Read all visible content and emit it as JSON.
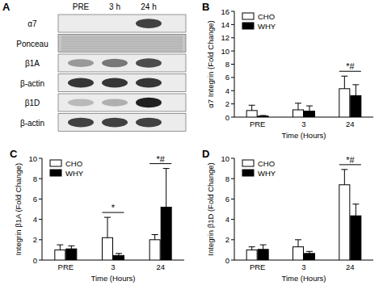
{
  "blot": {
    "title": "A",
    "columns": [
      "PRE",
      "3 h",
      "24 h"
    ],
    "rows": [
      "α7",
      "Ponceau",
      "β1A",
      "β-actin",
      "β1D",
      "β-actin"
    ]
  },
  "chart_data": [
    {
      "type": "bar",
      "title": "B",
      "x_label": "Time (Hours)",
      "y_label": "α7 Integrin (Fold Change)",
      "categories": [
        "PRE",
        "3",
        "24"
      ],
      "series": [
        {
          "name": "CHO",
          "color": "#ffffff",
          "values": [
            1.0,
            1.1,
            4.3
          ],
          "errors": [
            0.8,
            1.0,
            1.9
          ]
        },
        {
          "name": "WHY",
          "color": "#000000",
          "values": [
            0.15,
            0.9,
            3.25
          ],
          "errors": [
            0.1,
            0.8,
            1.65
          ]
        }
      ],
      "ylim": [
        0,
        16
      ],
      "yticks": [
        0,
        2,
        4,
        6,
        8,
        10,
        12,
        14,
        16
      ],
      "legend": "upper left",
      "annotations": [
        {
          "text": "*#",
          "category": "24"
        }
      ]
    },
    {
      "type": "bar",
      "title": "C",
      "x_label": "Time (Hours)",
      "y_label": "Integrin β1A (Fold Change)",
      "categories": [
        "PRE",
        "3",
        "24"
      ],
      "series": [
        {
          "name": "CHO",
          "color": "#ffffff",
          "values": [
            1.0,
            2.2,
            2.0
          ],
          "errors": [
            0.5,
            2.0,
            0.5
          ]
        },
        {
          "name": "WHY",
          "color": "#000000",
          "values": [
            1.1,
            0.45,
            5.2
          ],
          "errors": [
            0.3,
            0.2,
            3.8
          ]
        }
      ],
      "ylim": [
        0,
        10
      ],
      "yticks": [
        0,
        2,
        4,
        6,
        8,
        10
      ],
      "legend": "upper left",
      "annotations": [
        {
          "text": "*",
          "category": "3"
        },
        {
          "text": "*#",
          "category": "24"
        }
      ]
    },
    {
      "type": "bar",
      "title": "D",
      "x_label": "Time (Hours)",
      "y_label": "Integrin β1D (Fold Change)",
      "categories": [
        "PRE",
        "3",
        "24"
      ],
      "series": [
        {
          "name": "CHO",
          "color": "#ffffff",
          "values": [
            1.0,
            1.3,
            7.4
          ],
          "errors": [
            0.3,
            0.7,
            1.5
          ]
        },
        {
          "name": "WHY",
          "color": "#000000",
          "values": [
            1.05,
            0.65,
            4.35
          ],
          "errors": [
            0.45,
            0.2,
            1.15
          ]
        }
      ],
      "ylim": [
        0,
        10
      ],
      "yticks": [
        0,
        2,
        4,
        6,
        8,
        10
      ],
      "legend": "upper left",
      "annotations": [
        {
          "text": "*#",
          "category": "24"
        }
      ]
    }
  ]
}
